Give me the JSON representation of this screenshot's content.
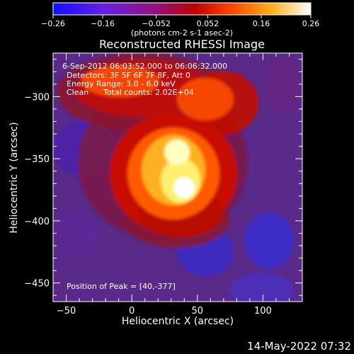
{
  "chart_data": {
    "type": "heatmap",
    "title": "Reconstructed RHESSI Image",
    "xlabel": "Heliocentric X (arcsec)",
    "ylabel": "Heliocentric Y (arcsec)",
    "xlim": [
      -60,
      130
    ],
    "ylim": [
      -465,
      -265
    ],
    "xticks": [
      -50,
      0,
      50,
      100
    ],
    "yticks": [
      -300,
      -350,
      -400,
      -450
    ],
    "colorbar": {
      "ticks": [
        -0.26,
        -0.16,
        -0.052,
        0.052,
        0.16,
        0.26
      ],
      "tick_labels": [
        "-0.26",
        "-0.16",
        "-0.052",
        "0.052",
        "0.16",
        "0.26"
      ],
      "unit": "(photons cm-2 s-1 asec-2)",
      "range": [
        -0.26,
        0.26
      ],
      "colors": [
        "#1010ff",
        "#7a1fd8",
        "#a01060",
        "#d00000",
        "#ff5a00",
        "#ffc020",
        "#ffffff"
      ]
    },
    "annotations": [
      "6-Sep-2012 06:03:52.000 to 06:06:32.000",
      "Detectors: 3F 5F 6F 7F 8F, Att 0",
      "Energy Range: 3.0 - 6.0 keV",
      "Clean",
      "Total counts: 2.02E+04",
      "Position of Peak = [40,-377]"
    ],
    "peak": {
      "x": 40,
      "y": -377
    },
    "grid": false
  },
  "footer": {
    "timestamp": "14-May-2022 07:32"
  }
}
